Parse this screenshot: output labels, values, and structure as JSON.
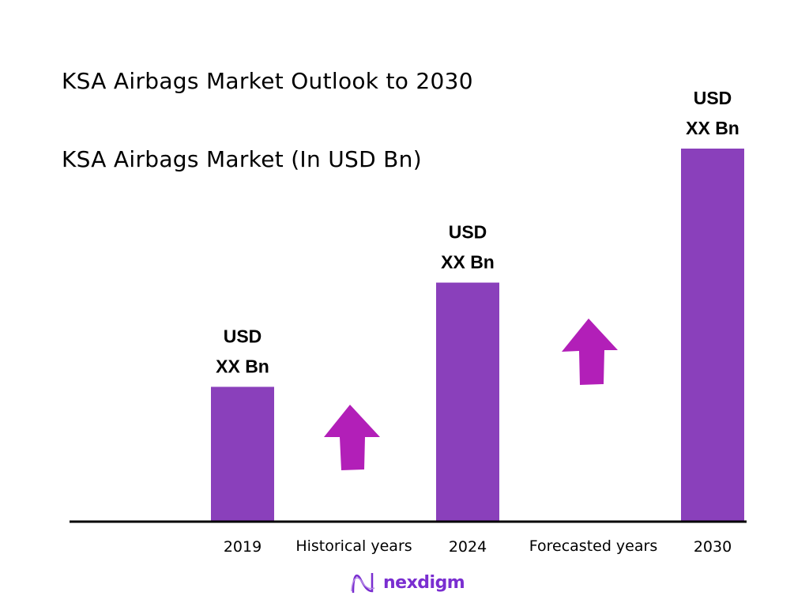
{
  "chart_data": {
    "type": "bar",
    "title": "KSA Airbags Market Outlook to 2030",
    "subtitle": "KSA Airbags Market (In USD Bn)",
    "categories": [
      "2019",
      "2024",
      "2030"
    ],
    "relative_values": [
      0.36,
      0.64,
      1.0
    ],
    "data_labels": [
      {
        "line1": "USD",
        "line2": "XX Bn"
      },
      {
        "line1": "USD",
        "line2": "XX Bn"
      },
      {
        "line1": "USD",
        "line2": "XX Bn"
      }
    ],
    "period_labels": [
      "Historical years",
      "Forecasted years"
    ],
    "grid": false,
    "bar_color": "#8a40bb",
    "arrow_color": "#b21fb8",
    "axis_color": "#000000"
  },
  "brand": {
    "name": "nexdigm",
    "color": "#7a2ed0"
  }
}
